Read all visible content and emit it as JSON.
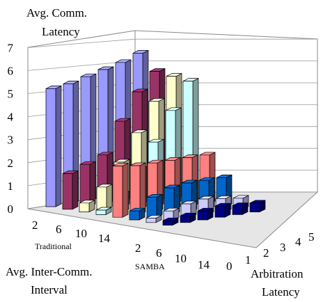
{
  "chart_data": {
    "type": "bar3d",
    "title": "",
    "zlabel": [
      "Avg. Comm.",
      "Latency"
    ],
    "xlabel": [
      "Avg. Inter-Comm.",
      "Interval"
    ],
    "ylabel": [
      "Arbitration",
      "Latency"
    ],
    "zlim": [
      0,
      7
    ],
    "z_ticks": [
      "0",
      "1",
      "2",
      "3",
      "4",
      "5",
      "6",
      "7"
    ],
    "y_ticks": [
      "0",
      "1",
      "2",
      "3",
      "4",
      "5"
    ],
    "groups": [
      {
        "name": "Traditional",
        "intervals": [
          "2",
          "6",
          "10",
          "14"
        ]
      },
      {
        "name": "SAMBA",
        "intervals": [
          "2",
          "6",
          "10",
          "14"
        ]
      }
    ],
    "arbitration_latency": [
      0,
      1,
      2,
      3,
      4,
      5
    ],
    "values": {
      "Traditional": [
        [
          5.3,
          5.4,
          5.6,
          5.8,
          6.0,
          6.3
        ],
        [
          1.6,
          1.9,
          2.2,
          3.6,
          4.8,
          5.6
        ],
        [
          0.4,
          1.0,
          2.0,
          3.2,
          4.5,
          5.5
        ],
        [
          0.2,
          0.8,
          1.8,
          2.9,
          4.2,
          5.4
        ]
      ],
      "SAMBA": [
        [
          2.3,
          2.2,
          2.2,
          2.2,
          2.2,
          2.2
        ],
        [
          0.4,
          0.9,
          1.2,
          1.3,
          1.3,
          1.3
        ],
        [
          0.2,
          0.4,
          0.6,
          0.7,
          0.6,
          0.5
        ],
        [
          0.2,
          0.3,
          0.4,
          0.5,
          0.4,
          0.4
        ]
      ]
    },
    "row_colors": [
      "#9999ff",
      "#993366",
      "#ffffcc",
      "#ccffff",
      "#ff8080",
      "#0066cc",
      "#ccccff",
      "#000080"
    ],
    "grid": true
  }
}
